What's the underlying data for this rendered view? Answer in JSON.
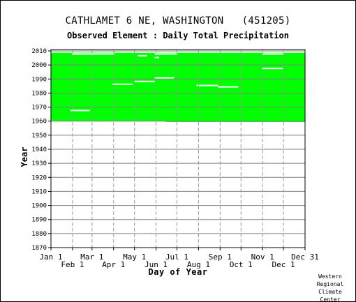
{
  "chart_data": {
    "type": "heatmap",
    "title": "CATHLAMET 6 NE, WASHINGTON   (451205)",
    "subtitle": "Observed Element : Daily Total Precipitation",
    "xlabel": "Day of Year",
    "ylabel": "Year",
    "xlim": [
      1,
      366
    ],
    "ylim": [
      1870,
      2011
    ],
    "grid": true,
    "fill_color": "#00ff00",
    "gap_color": "#ffffff",
    "y_ticks": [
      1870,
      1880,
      1890,
      1900,
      1910,
      1920,
      1930,
      1940,
      1950,
      1960,
      1970,
      1980,
      1990,
      2000,
      2010
    ],
    "x_ticks_upper": [
      {
        "day": 1,
        "label": "Jan 1"
      },
      {
        "day": 60,
        "label": "Mar 1"
      },
      {
        "day": 121,
        "label": "May 1"
      },
      {
        "day": 182,
        "label": "Jul 1"
      },
      {
        "day": 244,
        "label": "Sep 1"
      },
      {
        "day": 305,
        "label": "Nov 1"
      },
      {
        "day": 366,
        "label": "Dec 31"
      }
    ],
    "x_ticks_lower": [
      {
        "day": 32,
        "label": "Feb 1"
      },
      {
        "day": 91,
        "label": "Apr 1"
      },
      {
        "day": 152,
        "label": "Jun 1"
      },
      {
        "day": 213,
        "label": "Aug 1"
      },
      {
        "day": 274,
        "label": "Oct 1"
      },
      {
        "day": 335,
        "label": "Dec 1"
      }
    ],
    "coverage": {
      "year_start": 1959.4,
      "year_end": 2010.3,
      "start_day_first_year": 166
    },
    "missing_gaps": [
      {
        "year": 2009.2,
        "day_start": 1,
        "day_end": 366
      },
      {
        "year": 2009.2,
        "day_start": 100,
        "day_end": 366
      },
      {
        "year": 2007.8,
        "day_start": 31,
        "day_end": 92
      },
      {
        "year": 2007.8,
        "day_start": 150,
        "day_end": 182
      },
      {
        "year": 2007.8,
        "day_start": 305,
        "day_end": 335
      },
      {
        "year": 2006.6,
        "day_start": 126,
        "day_end": 139
      },
      {
        "year": 2005.3,
        "day_start": 150,
        "day_end": 156
      },
      {
        "year": 1997.5,
        "day_start": 304,
        "day_end": 334
      },
      {
        "year": 1990.8,
        "day_start": 150,
        "day_end": 178
      },
      {
        "year": 1988.3,
        "day_start": 121,
        "day_end": 150
      },
      {
        "year": 1986.3,
        "day_start": 89,
        "day_end": 118
      },
      {
        "year": 1985.4,
        "day_start": 210,
        "day_end": 241
      },
      {
        "year": 1984.4,
        "day_start": 241,
        "day_end": 270
      },
      {
        "year": 1967.6,
        "day_start": 29,
        "day_end": 57
      },
      {
        "year": 1959.6,
        "day_start": 1,
        "day_end": 166
      }
    ],
    "credit": [
      "Western",
      "Regional",
      "Climate",
      "Center"
    ]
  }
}
